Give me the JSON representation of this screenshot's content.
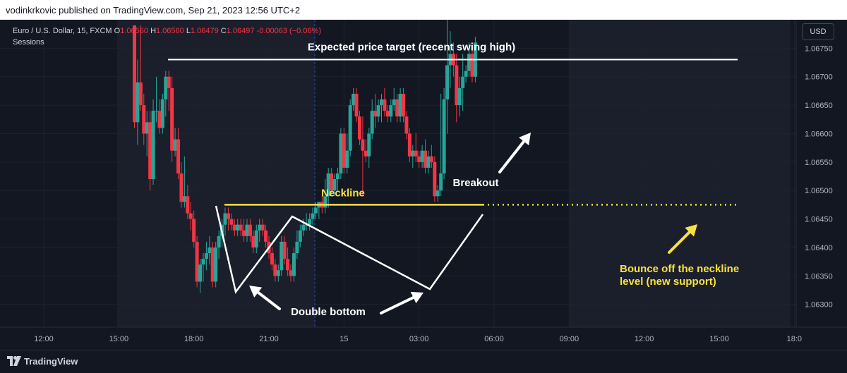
{
  "header": {
    "published": "vodinkrkovic published on TradingView.com, Sep 21, 2023 12:56 UTC+2"
  },
  "legend": {
    "symbol": "Euro / U.S. Dollar, 15, FXCM",
    "o_label": "O",
    "o_value": "1.06560",
    "h_label": "H",
    "h_value": "1.06560",
    "l_label": "L",
    "l_value": "1.06479",
    "c_label": "C",
    "c_value": "1.06497",
    "change": "-0.00063 (−0.06%)",
    "sessions": "Sessions"
  },
  "currency_button": "USD",
  "footer": {
    "brand": "TradingView"
  },
  "colors": {
    "up": "#26a69a",
    "down": "#f23645",
    "background": "#131722",
    "session_band": "#1b1f2b",
    "neckline": "#f7e243",
    "annotation": "#ffffff"
  },
  "chart_data": {
    "type": "candlestick",
    "y_axis": {
      "range": [
        1.0626,
        1.068
      ],
      "ticks": [
        "1.06750",
        "1.06700",
        "1.06650",
        "1.06600",
        "1.06550",
        "1.06500",
        "1.06450",
        "1.06400",
        "1.06350",
        "1.06300"
      ]
    },
    "x_axis": {
      "range": [
        0,
        108
      ],
      "ticks": [
        {
          "label": "12:00",
          "x": 0
        },
        {
          "label": "15:00",
          "x": 12
        },
        {
          "label": "18:00",
          "x": 24
        },
        {
          "label": "21:00",
          "x": 36
        },
        {
          "label": "15",
          "x": 48
        },
        {
          "label": "03:00",
          "x": 60
        },
        {
          "label": "06:00",
          "x": 72
        },
        {
          "label": "09:00",
          "x": 84
        },
        {
          "label": "12:00",
          "x": 96
        },
        {
          "label": "15:00",
          "x": 108
        },
        {
          "label": "18:0",
          "x": 120
        }
      ]
    },
    "candles": [
      [
        14.5,
        1.0679,
        1.0679,
        1.0661,
        1.0662
      ],
      [
        15.0,
        1.0662,
        1.0673,
        1.0658,
        1.0669
      ],
      [
        15.5,
        1.0669,
        1.0679,
        1.0664,
        1.0665
      ],
      [
        16.0,
        1.0665,
        1.0667,
        1.0658,
        1.066
      ],
      [
        16.5,
        1.066,
        1.0664,
        1.0656,
        1.0662
      ],
      [
        17.0,
        1.0662,
        1.0664,
        1.065,
        1.0652
      ],
      [
        17.5,
        1.0652,
        1.0666,
        1.0651,
        1.0664
      ],
      [
        18.0,
        1.0664,
        1.067,
        1.0662,
        1.0664
      ],
      [
        18.5,
        1.0664,
        1.0666,
        1.066,
        1.0661
      ],
      [
        19.0,
        1.0661,
        1.0667,
        1.066,
        1.0666
      ],
      [
        19.5,
        1.0666,
        1.0671,
        1.0663,
        1.067
      ],
      [
        20.0,
        1.067,
        1.0671,
        1.0664,
        1.0668
      ],
      [
        20.5,
        1.0668,
        1.067,
        1.0655,
        1.0657
      ],
      [
        21.0,
        1.0657,
        1.0661,
        1.0656,
        1.0659
      ],
      [
        21.5,
        1.0659,
        1.0661,
        1.0652,
        1.0653
      ],
      [
        22.0,
        1.0653,
        1.0655,
        1.0647,
        1.0648
      ],
      [
        22.5,
        1.0648,
        1.0656,
        1.0647,
        1.0649
      ],
      [
        23.0,
        1.0649,
        1.0651,
        1.0645,
        1.0646
      ],
      [
        23.5,
        1.0646,
        1.0648,
        1.0643,
        1.0645
      ],
      [
        24.0,
        1.0645,
        1.06465,
        1.064,
        1.0641
      ],
      [
        24.5,
        1.0641,
        1.0642,
        1.0633,
        1.0634
      ],
      [
        25.0,
        1.0634,
        1.0638,
        1.0632,
        1.0637
      ],
      [
        25.5,
        1.0637,
        1.0639,
        1.0634,
        1.0638
      ],
      [
        26.0,
        1.0638,
        1.0641,
        1.0636,
        1.0639
      ],
      [
        26.5,
        1.0639,
        1.0642,
        1.0637,
        1.064
      ],
      [
        27.0,
        1.064,
        1.0641,
        1.0633,
        1.0634
      ],
      [
        27.5,
        1.0634,
        1.0641,
        1.0633,
        1.064
      ],
      [
        28.0,
        1.064,
        1.0643,
        1.0638,
        1.0642
      ],
      [
        28.5,
        1.0642,
        1.0645,
        1.064,
        1.0644
      ],
      [
        29.0,
        1.0644,
        1.0647,
        1.0642,
        1.0646
      ],
      [
        29.5,
        1.0646,
        1.0647,
        1.0643,
        1.0645
      ],
      [
        30.0,
        1.0645,
        1.0646,
        1.0643,
        1.0644
      ],
      [
        30.5,
        1.0644,
        1.0645,
        1.0642,
        1.0643
      ],
      [
        31.0,
        1.0643,
        1.0645,
        1.0642,
        1.0644
      ],
      [
        31.5,
        1.0644,
        1.0645,
        1.0642,
        1.0643
      ],
      [
        32.0,
        1.0643,
        1.0645,
        1.0641,
        1.0642
      ],
      [
        32.5,
        1.0642,
        1.0645,
        1.0641,
        1.0644
      ],
      [
        33.0,
        1.0644,
        1.0645,
        1.0641,
        1.0642
      ],
      [
        33.5,
        1.0642,
        1.0643,
        1.0639,
        1.064
      ],
      [
        34.0,
        1.064,
        1.0644,
        1.0639,
        1.0643
      ],
      [
        34.5,
        1.0643,
        1.0645,
        1.0641,
        1.0644
      ],
      [
        35.0,
        1.0644,
        1.0645,
        1.0642,
        1.0643
      ],
      [
        35.5,
        1.0643,
        1.0644,
        1.064,
        1.0641
      ],
      [
        36.0,
        1.0641,
        1.0642,
        1.0638,
        1.0639
      ],
      [
        36.5,
        1.0639,
        1.064,
        1.0636,
        1.0637
      ],
      [
        37.0,
        1.0637,
        1.0638,
        1.0634,
        1.0635
      ],
      [
        37.5,
        1.0635,
        1.0637,
        1.0634,
        1.0636
      ],
      [
        38.0,
        1.0636,
        1.0642,
        1.0635,
        1.0641
      ],
      [
        38.5,
        1.0641,
        1.0642,
        1.0637,
        1.0638
      ],
      [
        39.0,
        1.0638,
        1.064,
        1.0635,
        1.0636
      ],
      [
        39.5,
        1.0636,
        1.0637,
        1.0634,
        1.0635
      ],
      [
        40.0,
        1.0635,
        1.064,
        1.0634,
        1.0639
      ],
      [
        40.5,
        1.0639,
        1.0643,
        1.0638,
        1.0641
      ],
      [
        41.0,
        1.0641,
        1.0644,
        1.064,
        1.0643
      ],
      [
        41.5,
        1.0643,
        1.0645,
        1.0642,
        1.0644
      ],
      [
        42.0,
        1.0644,
        1.0646,
        1.0643,
        1.0644
      ],
      [
        42.5,
        1.0644,
        1.0646,
        1.0643,
        1.0645
      ],
      [
        43.0,
        1.0645,
        1.0647,
        1.0644,
        1.0646
      ],
      [
        43.5,
        1.0646,
        1.0648,
        1.0645,
        1.0647
      ],
      [
        44.0,
        1.0647,
        1.0648,
        1.0645,
        1.0648
      ],
      [
        44.5,
        1.0648,
        1.0649,
        1.0646,
        1.0647
      ],
      [
        45.0,
        1.0647,
        1.0652,
        1.0646,
        1.0649
      ],
      [
        45.5,
        1.0649,
        1.0654,
        1.0647,
        1.0653
      ],
      [
        46.0,
        1.0653,
        1.0654,
        1.0649,
        1.065
      ],
      [
        46.5,
        1.065,
        1.0653,
        1.0649,
        1.0652
      ],
      [
        47.0,
        1.0652,
        1.0654,
        1.065,
        1.0653
      ],
      [
        47.5,
        1.0653,
        1.0661,
        1.0652,
        1.066
      ],
      [
        48.0,
        1.066,
        1.0661,
        1.0653,
        1.0654
      ],
      [
        48.5,
        1.0654,
        1.066,
        1.0653,
        1.0657
      ],
      [
        49.0,
        1.0657,
        1.0666,
        1.0656,
        1.0665
      ],
      [
        49.5,
        1.0665,
        1.0668,
        1.0664,
        1.0667
      ],
      [
        50.0,
        1.0667,
        1.0668,
        1.0662,
        1.0663
      ],
      [
        50.5,
        1.0663,
        1.0664,
        1.0658,
        1.0659
      ],
      [
        51.0,
        1.0659,
        1.0663,
        1.0649,
        1.0657
      ],
      [
        51.5,
        1.0657,
        1.0659,
        1.0655,
        1.0656
      ],
      [
        52.0,
        1.0656,
        1.0661,
        1.0654,
        1.066
      ],
      [
        52.5,
        1.066,
        1.0666,
        1.0659,
        1.0664
      ],
      [
        53.0,
        1.0664,
        1.0667,
        1.0661,
        1.0663
      ],
      [
        53.5,
        1.0663,
        1.0666,
        1.0662,
        1.0665
      ],
      [
        54.0,
        1.0665,
        1.0667,
        1.0662,
        1.0666
      ],
      [
        54.5,
        1.0666,
        1.0668,
        1.0663,
        1.0664
      ],
      [
        55.0,
        1.0664,
        1.0665,
        1.0662,
        1.0663
      ],
      [
        55.5,
        1.0663,
        1.0666,
        1.0662,
        1.0665
      ],
      [
        56.0,
        1.0665,
        1.0668,
        1.0664,
        1.0666
      ],
      [
        56.5,
        1.0666,
        1.0667,
        1.0662,
        1.0663
      ],
      [
        57.0,
        1.0663,
        1.0668,
        1.0662,
        1.0667
      ],
      [
        57.5,
        1.0667,
        1.0668,
        1.0662,
        1.0663
      ],
      [
        58.0,
        1.0663,
        1.0664,
        1.0659,
        1.066
      ],
      [
        58.5,
        1.066,
        1.0661,
        1.0655,
        1.0656
      ],
      [
        59.0,
        1.0656,
        1.0658,
        1.0654,
        1.0657
      ],
      [
        59.5,
        1.0657,
        1.066,
        1.0655,
        1.0656
      ],
      [
        60.0,
        1.0656,
        1.0657,
        1.0654,
        1.0655
      ],
      [
        60.5,
        1.0655,
        1.0658,
        1.0654,
        1.0657
      ],
      [
        61.0,
        1.0657,
        1.0659,
        1.0653,
        1.0654
      ],
      [
        61.5,
        1.0654,
        1.0657,
        1.0653,
        1.0656
      ],
      [
        62.0,
        1.0656,
        1.0658,
        1.0654,
        1.0655
      ],
      [
        62.5,
        1.0655,
        1.0656,
        1.0648,
        1.0649
      ],
      [
        63.0,
        1.0649,
        1.0651,
        1.0648,
        1.065
      ],
      [
        63.5,
        1.065,
        1.0667,
        1.0649,
        1.0653
      ],
      [
        64.0,
        1.0653,
        1.0668,
        1.0652,
        1.0666
      ],
      [
        64.5,
        1.0666,
        1.069,
        1.066,
        1.0672
      ],
      [
        65.0,
        1.0672,
        1.0678,
        1.0668,
        1.0674
      ],
      [
        65.5,
        1.0674,
        1.0676,
        1.067,
        1.0672
      ],
      [
        66.0,
        1.0672,
        1.0674,
        1.0662,
        1.0665
      ],
      [
        66.5,
        1.0665,
        1.067,
        1.0663,
        1.0668
      ],
      [
        67.0,
        1.0668,
        1.0674,
        1.0664,
        1.067
      ],
      [
        67.5,
        1.067,
        1.0672,
        1.0669,
        1.0671
      ],
      [
        68.0,
        1.0671,
        1.0676,
        1.067,
        1.0674
      ],
      [
        68.5,
        1.0674,
        1.0675,
        1.0669,
        1.067
      ],
      [
        69.0,
        1.067,
        1.0677,
        1.0669,
        1.0676
      ]
    ],
    "annotations": {
      "price_target": {
        "text": "Expected price target (recent swing high)",
        "price": 1.0673
      },
      "neckline": {
        "text": "Neckline",
        "price": 1.06475
      },
      "double_bottom": "Double bottom",
      "breakout": "Breakout",
      "bounce": [
        "Bounce off the neckline",
        "level (new support)"
      ]
    }
  }
}
